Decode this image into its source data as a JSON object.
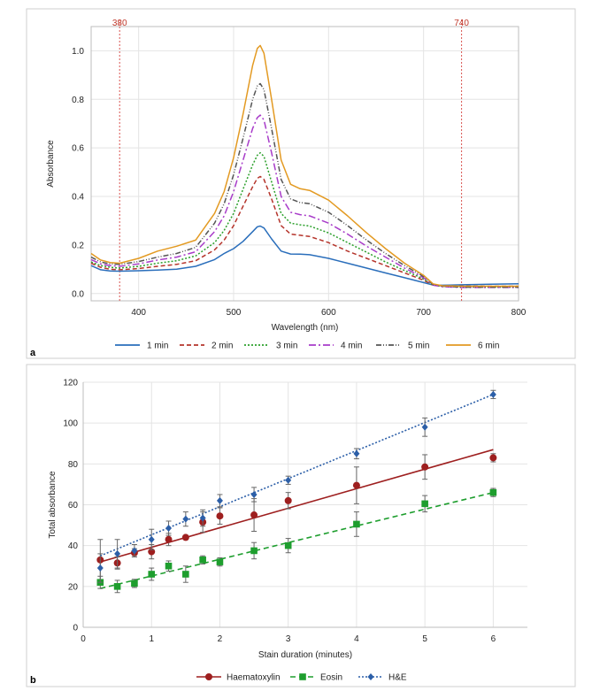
{
  "chart_data": [
    {
      "panel": "a",
      "type": "line",
      "xlabel": "Wavelength (nm)",
      "ylabel": "Absorbance",
      "xlim": [
        350,
        800
      ],
      "ylim": [
        -0.03,
        1.1
      ],
      "xticks": [
        400,
        500,
        600,
        700,
        800
      ],
      "yticks": [
        0.0,
        0.2,
        0.4,
        0.6,
        0.8,
        1.0
      ],
      "ytick_labels": [
        "0.0",
        "0.2",
        "0.4",
        "0.6",
        "0.8",
        "1.0"
      ],
      "grid": true,
      "legend_position": "bottom",
      "vlines": [
        {
          "x": 380,
          "label": "380",
          "color": "#d9534f"
        },
        {
          "x": 740,
          "label": "740",
          "color": "#d9534f"
        }
      ],
      "x": [
        350,
        360,
        370,
        380,
        400,
        420,
        440,
        460,
        480,
        490,
        500,
        510,
        520,
        525,
        528,
        532,
        540,
        550,
        560,
        570,
        580,
        600,
        620,
        640,
        660,
        680,
        700,
        710,
        720,
        740,
        770,
        800
      ],
      "series": [
        {
          "name": "1 min",
          "color": "#2a6ebb",
          "dash": "",
          "values": [
            0.115,
            0.098,
            0.093,
            0.092,
            0.094,
            0.097,
            0.1,
            0.112,
            0.14,
            0.165,
            0.185,
            0.215,
            0.255,
            0.275,
            0.278,
            0.27,
            0.225,
            0.175,
            0.163,
            0.162,
            0.16,
            0.145,
            0.125,
            0.105,
            0.085,
            0.065,
            0.045,
            0.035,
            0.034,
            0.036,
            0.038,
            0.04
          ]
        },
        {
          "name": "2 min",
          "color": "#b5342b",
          "dash": "5,3",
          "values": [
            0.125,
            0.108,
            0.1,
            0.098,
            0.103,
            0.112,
            0.12,
            0.135,
            0.18,
            0.22,
            0.28,
            0.36,
            0.44,
            0.475,
            0.482,
            0.47,
            0.39,
            0.28,
            0.245,
            0.24,
            0.235,
            0.21,
            0.175,
            0.145,
            0.115,
            0.085,
            0.055,
            0.035,
            0.032,
            0.031,
            0.03,
            0.03
          ]
        },
        {
          "name": "3 min",
          "color": "#2ca02c",
          "dash": "2,2",
          "values": [
            0.13,
            0.115,
            0.108,
            0.105,
            0.112,
            0.125,
            0.135,
            0.155,
            0.21,
            0.26,
            0.33,
            0.43,
            0.53,
            0.57,
            0.58,
            0.565,
            0.46,
            0.33,
            0.29,
            0.283,
            0.278,
            0.25,
            0.21,
            0.17,
            0.13,
            0.095,
            0.06,
            0.035,
            0.03,
            0.028,
            0.027,
            0.027
          ]
        },
        {
          "name": "4 min",
          "color": "#a83cc9",
          "dash": "8,3,2,3",
          "values": [
            0.14,
            0.122,
            0.115,
            0.112,
            0.122,
            0.138,
            0.15,
            0.172,
            0.255,
            0.32,
            0.42,
            0.55,
            0.68,
            0.725,
            0.735,
            0.715,
            0.58,
            0.4,
            0.335,
            0.325,
            0.32,
            0.29,
            0.245,
            0.195,
            0.15,
            0.105,
            0.065,
            0.035,
            0.028,
            0.025,
            0.025,
            0.025
          ]
        },
        {
          "name": "5 min",
          "color": "#555555",
          "dash": "6,2,1,2,1,2",
          "values": [
            0.15,
            0.13,
            0.122,
            0.12,
            0.132,
            0.15,
            0.165,
            0.19,
            0.29,
            0.37,
            0.49,
            0.64,
            0.8,
            0.855,
            0.865,
            0.84,
            0.68,
            0.47,
            0.39,
            0.375,
            0.37,
            0.335,
            0.28,
            0.22,
            0.165,
            0.115,
            0.07,
            0.037,
            0.03,
            0.026,
            0.026,
            0.026
          ]
        },
        {
          "name": "6 min",
          "color": "#e39a22",
          "dash": "",
          "values": [
            0.165,
            0.138,
            0.128,
            0.125,
            0.145,
            0.175,
            0.195,
            0.22,
            0.33,
            0.42,
            0.56,
            0.74,
            0.94,
            1.01,
            1.022,
            0.99,
            0.8,
            0.55,
            0.45,
            0.432,
            0.425,
            0.385,
            0.32,
            0.25,
            0.185,
            0.125,
            0.075,
            0.04,
            0.032,
            0.03,
            0.03,
            0.03
          ]
        }
      ]
    },
    {
      "panel": "b",
      "type": "scatter",
      "xlabel": "Stain duration (minutes)",
      "ylabel": "Total absorbance",
      "xlim": [
        0,
        6.5
      ],
      "ylim": [
        0,
        120
      ],
      "xticks": [
        0,
        1,
        2,
        3,
        4,
        5,
        6
      ],
      "yticks": [
        0,
        20,
        40,
        60,
        80,
        100,
        120
      ],
      "grid": true,
      "legend_position": "bottom",
      "x": [
        0.25,
        0.5,
        0.75,
        1,
        1.25,
        1.5,
        1.75,
        2,
        2.5,
        3,
        4,
        5,
        6
      ],
      "series": [
        {
          "name": "Haematoxylin",
          "color": "#9e1f1f",
          "marker": "circle",
          "dash": "",
          "values": [
            33,
            31.5,
            36.5,
            37,
            43,
            44,
            51.5,
            54.5,
            55,
            62,
            69.5,
            78.5,
            83
          ],
          "errors": [
            10,
            3,
            2,
            3.5,
            3,
            1,
            5,
            4,
            8,
            4,
            9,
            6,
            2
          ],
          "fit": [
            32,
            87
          ]
        },
        {
          "name": "Eosin",
          "color": "#1e9e2e",
          "marker": "square",
          "dash": "6,4",
          "values": [
            22,
            20,
            21.5,
            26,
            30,
            26,
            33,
            32,
            37.5,
            40,
            50.5,
            60.5,
            66
          ],
          "errors": [
            3,
            3,
            2,
            3,
            2.5,
            4,
            2,
            2,
            4,
            3.5,
            6,
            4,
            2
          ],
          "fit": [
            19,
            66
          ]
        },
        {
          "name": "H&E",
          "color": "#2c5fa8",
          "marker": "diamond",
          "dash": "2,2",
          "values": [
            29,
            36,
            37.5,
            43,
            48.5,
            53,
            53.5,
            62,
            65,
            72,
            85,
            98,
            114
          ],
          "errors": [
            7,
            7,
            3,
            5,
            3.5,
            3.5,
            4,
            3,
            3.5,
            2,
            2.5,
            4.5,
            2
          ],
          "fit": [
            35,
            114
          ]
        }
      ]
    }
  ]
}
